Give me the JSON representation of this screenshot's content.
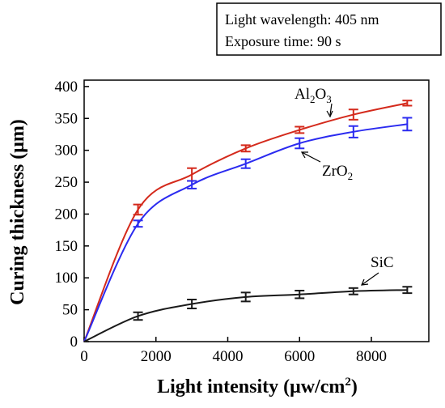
{
  "chart_data": {
    "type": "line",
    "info_box": {
      "line1": "Light wavelength: 405 nm",
      "line2": "Exposure time: 90 s"
    },
    "xlabel": "Light intensity (μw/cm",
    "xlabel_sup": "2",
    "xlabel_end": ")",
    "ylabel": "Curing thickness (μm)",
    "xlim": [
      0,
      9600
    ],
    "ylim": [
      0,
      410
    ],
    "xticks": [
      0,
      2000,
      4000,
      6000,
      8000
    ],
    "yticks": [
      0,
      50,
      100,
      150,
      200,
      250,
      300,
      350,
      400
    ],
    "grid": false,
    "series": [
      {
        "name": "Al2O3",
        "label_main": "Al",
        "label_sub": "2",
        "label_main2": "O",
        "label_sub2": "3",
        "color": "#d42a1c",
        "x": [
          0,
          1500,
          3000,
          4500,
          6000,
          7500,
          9000
        ],
        "y": [
          0,
          207,
          262,
          303,
          332,
          356,
          374
        ],
        "err": [
          0,
          8,
          10,
          5,
          5,
          8,
          4
        ]
      },
      {
        "name": "ZrO2",
        "label_main": "ZrO",
        "label_sub": "2",
        "color": "#2b2bf0",
        "x": [
          0,
          1500,
          3000,
          4500,
          6000,
          7500,
          9000
        ],
        "y": [
          0,
          185,
          246,
          279,
          311,
          329,
          341
        ],
        "err": [
          0,
          5,
          6,
          7,
          8,
          9,
          10
        ]
      },
      {
        "name": "SiC",
        "label_main": "SiC",
        "color": "#1a1a1a",
        "x": [
          0,
          1500,
          3000,
          4500,
          6000,
          7500,
          9000
        ],
        "y": [
          0,
          40,
          59,
          70,
          74,
          79,
          81
        ],
        "err": [
          0,
          6,
          7,
          7,
          6,
          5,
          5
        ]
      }
    ]
  }
}
